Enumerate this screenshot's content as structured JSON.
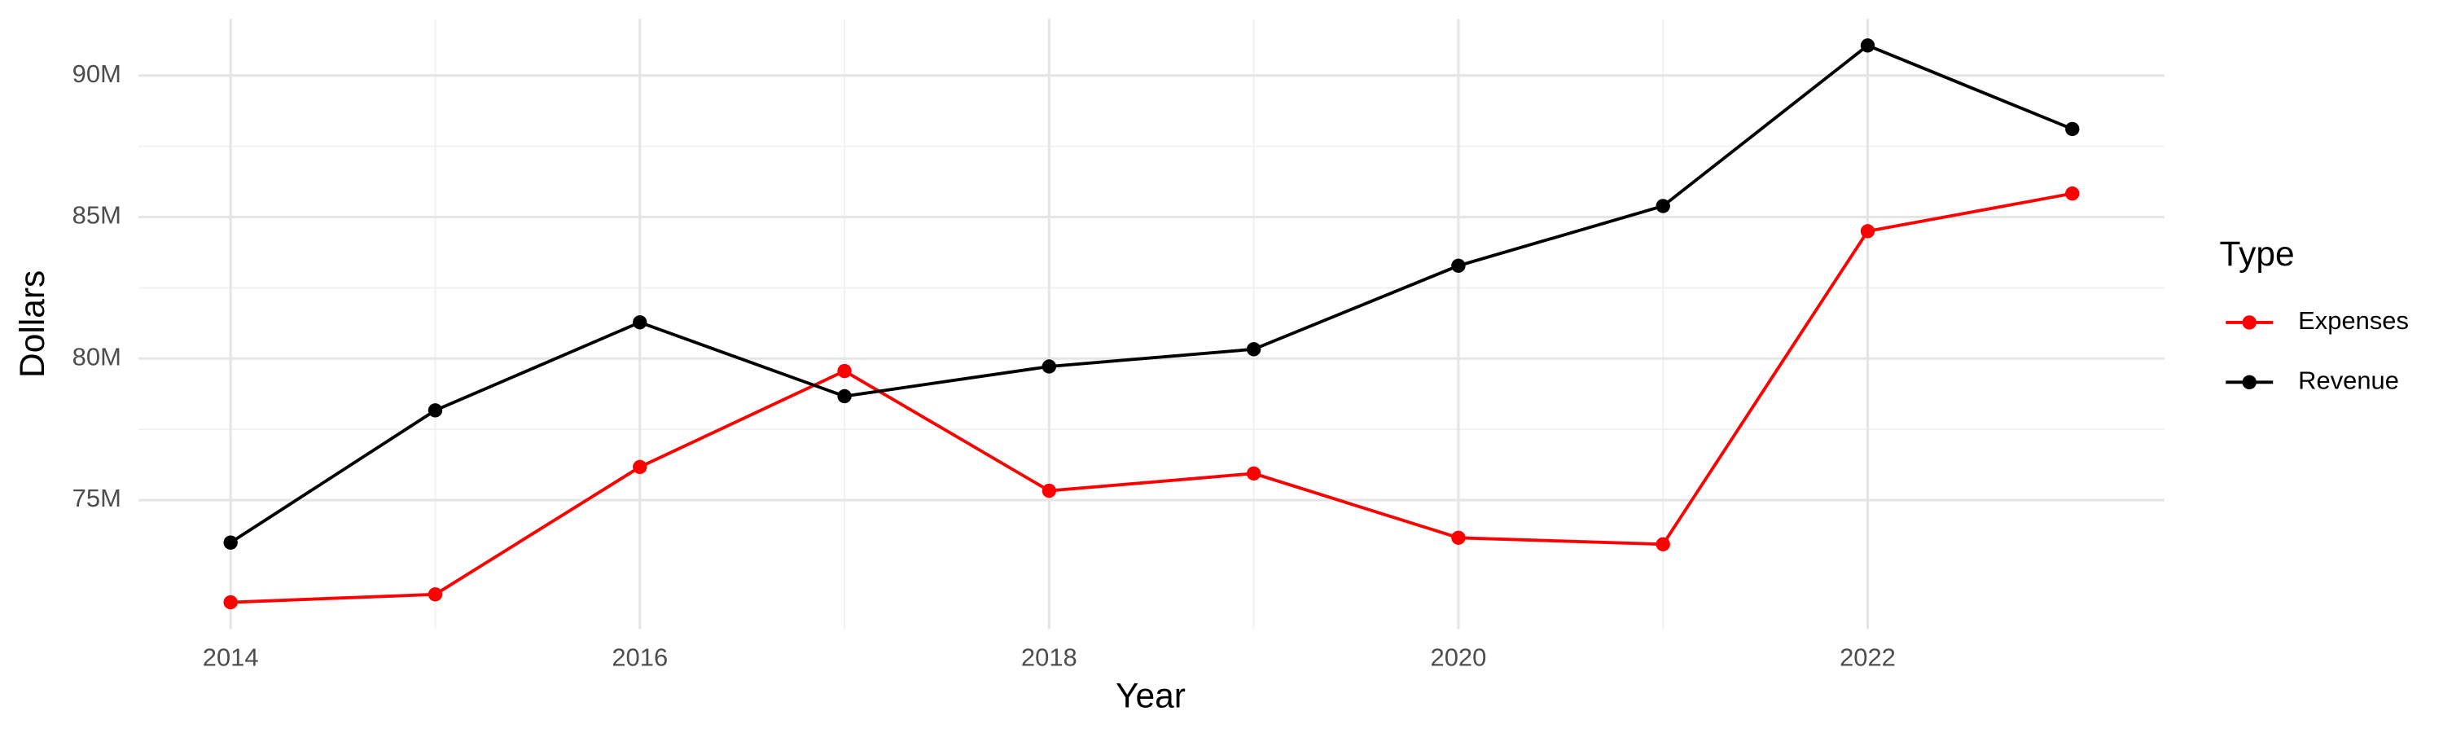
{
  "chart_data": {
    "type": "line",
    "x_label": "Year",
    "y_label": "Dollars",
    "x": [
      2014,
      2015,
      2016,
      2017,
      2018,
      2019,
      2020,
      2021,
      2022,
      2023
    ],
    "series": [
      {
        "name": "Expenses",
        "color": "#ff0000",
        "values": [
          71390000,
          71670000,
          76170000,
          79560000,
          75330000,
          75940000,
          73670000,
          73440000,
          84500000,
          85830000
        ]
      },
      {
        "name": "Revenue",
        "color": "#000000",
        "values": [
          73500000,
          78170000,
          81280000,
          78670000,
          79720000,
          80330000,
          83280000,
          85390000,
          91060000,
          88110000
        ]
      }
    ],
    "xlim": [
      2013.55,
      2023.45
    ],
    "xticks": [
      2014,
      2016,
      2018,
      2020,
      2022
    ],
    "ylim": [
      70440000,
      92000000
    ],
    "yticks": [
      {
        "value": 75000000,
        "label": "75M"
      },
      {
        "value": 80000000,
        "label": "80M"
      },
      {
        "value": 85000000,
        "label": "85M"
      },
      {
        "value": 90000000,
        "label": "90M"
      }
    ],
    "grid": true,
    "legend_title": "Type",
    "legend_position": "right"
  }
}
